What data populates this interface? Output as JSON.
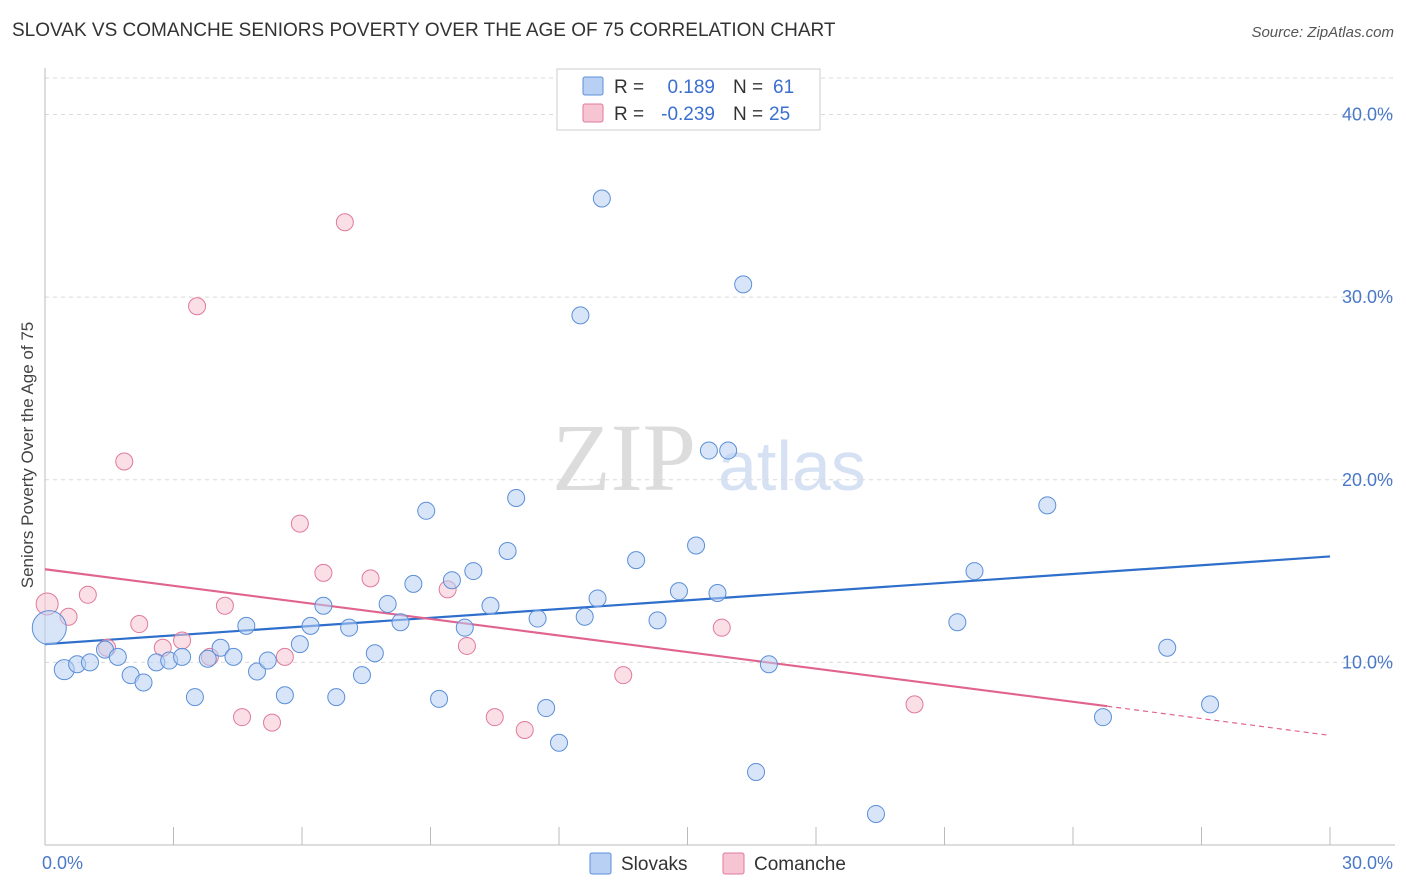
{
  "title": "SLOVAK VS COMANCHE SENIORS POVERTY OVER THE AGE OF 75 CORRELATION CHART",
  "source": "Source: ZipAtlas.com",
  "watermark": {
    "zip": "ZIP",
    "atlas": "atlas"
  },
  "colors": {
    "slovaks_fill": "#b8d0f3",
    "slovaks_stroke": "#5b8fd8",
    "slovaks_line": "#2f6fcc",
    "comanche_fill": "#f7c4d4",
    "comanche_stroke": "#e07a9c",
    "comanche_line": "#e0648e",
    "grid": "#d9d9d9",
    "tick_label": "#4a78c8"
  },
  "legend_top": {
    "rows": [
      {
        "r_label": "R =",
        "r_value": "0.189",
        "n_label": "N =",
        "n_value": "61"
      },
      {
        "r_label": "R =",
        "r_value": "-0.239",
        "n_label": "N =",
        "n_value": "25"
      }
    ]
  },
  "legend_bottom": {
    "series1": "Slovaks",
    "series2": "Comanche"
  },
  "chart_data": {
    "type": "scatter",
    "title": "SLOVAK VS COMANCHE SENIORS POVERTY OVER THE AGE OF 75 CORRELATION CHART",
    "xlabel": "",
    "ylabel": "Seniors Poverty Over the Age of 75",
    "xlim": [
      0,
      30
    ],
    "ylim": [
      0,
      42
    ],
    "x_tick_labels": [
      "0.0%",
      "30.0%"
    ],
    "y_ticks": [
      10,
      20,
      30,
      40
    ],
    "y_tick_labels": [
      "10.0%",
      "20.0%",
      "30.0%",
      "40.0%"
    ],
    "grid": true,
    "legend_position": "top-center",
    "series": [
      {
        "name": "Slovaks",
        "r": 0.189,
        "n": 61,
        "trend": {
          "x": [
            0,
            30
          ],
          "y": [
            11.0,
            15.8
          ]
        },
        "points": [
          [
            0.1,
            11.9
          ],
          [
            0.45,
            9.6
          ],
          [
            0.75,
            9.9
          ],
          [
            1.05,
            10.0
          ],
          [
            1.4,
            10.7
          ],
          [
            1.7,
            10.3
          ],
          [
            2.0,
            9.3
          ],
          [
            2.3,
            8.9
          ],
          [
            2.6,
            10.0
          ],
          [
            2.9,
            10.1
          ],
          [
            3.2,
            10.3
          ],
          [
            3.5,
            8.1
          ],
          [
            3.8,
            10.2
          ],
          [
            4.1,
            10.8
          ],
          [
            4.4,
            10.3
          ],
          [
            4.7,
            12.0
          ],
          [
            4.95,
            9.5
          ],
          [
            5.2,
            10.1
          ],
          [
            5.6,
            8.2
          ],
          [
            5.95,
            11.0
          ],
          [
            6.2,
            12.0
          ],
          [
            6.5,
            13.1
          ],
          [
            6.8,
            8.1
          ],
          [
            7.1,
            11.9
          ],
          [
            7.4,
            9.3
          ],
          [
            7.7,
            10.5
          ],
          [
            8.0,
            13.2
          ],
          [
            8.3,
            12.2
          ],
          [
            8.6,
            14.3
          ],
          [
            8.9,
            18.3
          ],
          [
            9.2,
            8.0
          ],
          [
            9.5,
            14.5
          ],
          [
            9.8,
            11.9
          ],
          [
            10.0,
            15.0
          ],
          [
            10.4,
            13.1
          ],
          [
            10.8,
            16.1
          ],
          [
            11.0,
            19.0
          ],
          [
            11.5,
            12.4
          ],
          [
            11.7,
            7.5
          ],
          [
            12.0,
            5.6
          ],
          [
            12.5,
            29.0
          ],
          [
            12.6,
            12.5
          ],
          [
            12.9,
            13.5
          ],
          [
            13.0,
            35.4
          ],
          [
            13.8,
            15.6
          ],
          [
            14.3,
            12.3
          ],
          [
            14.8,
            13.9
          ],
          [
            15.2,
            16.4
          ],
          [
            15.5,
            21.6
          ],
          [
            15.7,
            13.8
          ],
          [
            15.95,
            21.6
          ],
          [
            16.3,
            30.7
          ],
          [
            16.6,
            4.0
          ],
          [
            16.9,
            9.9
          ],
          [
            19.4,
            1.7
          ],
          [
            21.3,
            12.2
          ],
          [
            21.7,
            15.0
          ],
          [
            23.4,
            18.6
          ],
          [
            24.7,
            7.0
          ],
          [
            26.2,
            10.8
          ],
          [
            27.2,
            7.7
          ]
        ]
      },
      {
        "name": "Comanche",
        "r": -0.239,
        "n": 25,
        "trend": {
          "x": [
            0,
            24.8
          ],
          "y": [
            15.1,
            7.6
          ]
        },
        "trend_dashed": {
          "x": [
            24.8,
            30
          ],
          "y": [
            7.6,
            6.0
          ]
        },
        "points": [
          [
            0.05,
            13.2
          ],
          [
            0.55,
            12.5
          ],
          [
            1.0,
            13.7
          ],
          [
            1.45,
            10.8
          ],
          [
            1.85,
            21.0
          ],
          [
            2.2,
            12.1
          ],
          [
            2.75,
            10.8
          ],
          [
            3.2,
            11.2
          ],
          [
            3.55,
            29.5
          ],
          [
            3.85,
            10.3
          ],
          [
            4.2,
            13.1
          ],
          [
            4.6,
            7.0
          ],
          [
            5.3,
            6.7
          ],
          [
            5.6,
            10.3
          ],
          [
            5.95,
            17.6
          ],
          [
            6.5,
            14.9
          ],
          [
            7.0,
            34.1
          ],
          [
            7.6,
            14.6
          ],
          [
            9.4,
            14.0
          ],
          [
            9.85,
            10.9
          ],
          [
            10.5,
            7.0
          ],
          [
            11.2,
            6.3
          ],
          [
            13.5,
            9.3
          ],
          [
            15.8,
            11.9
          ],
          [
            20.3,
            7.7
          ]
        ]
      }
    ]
  }
}
